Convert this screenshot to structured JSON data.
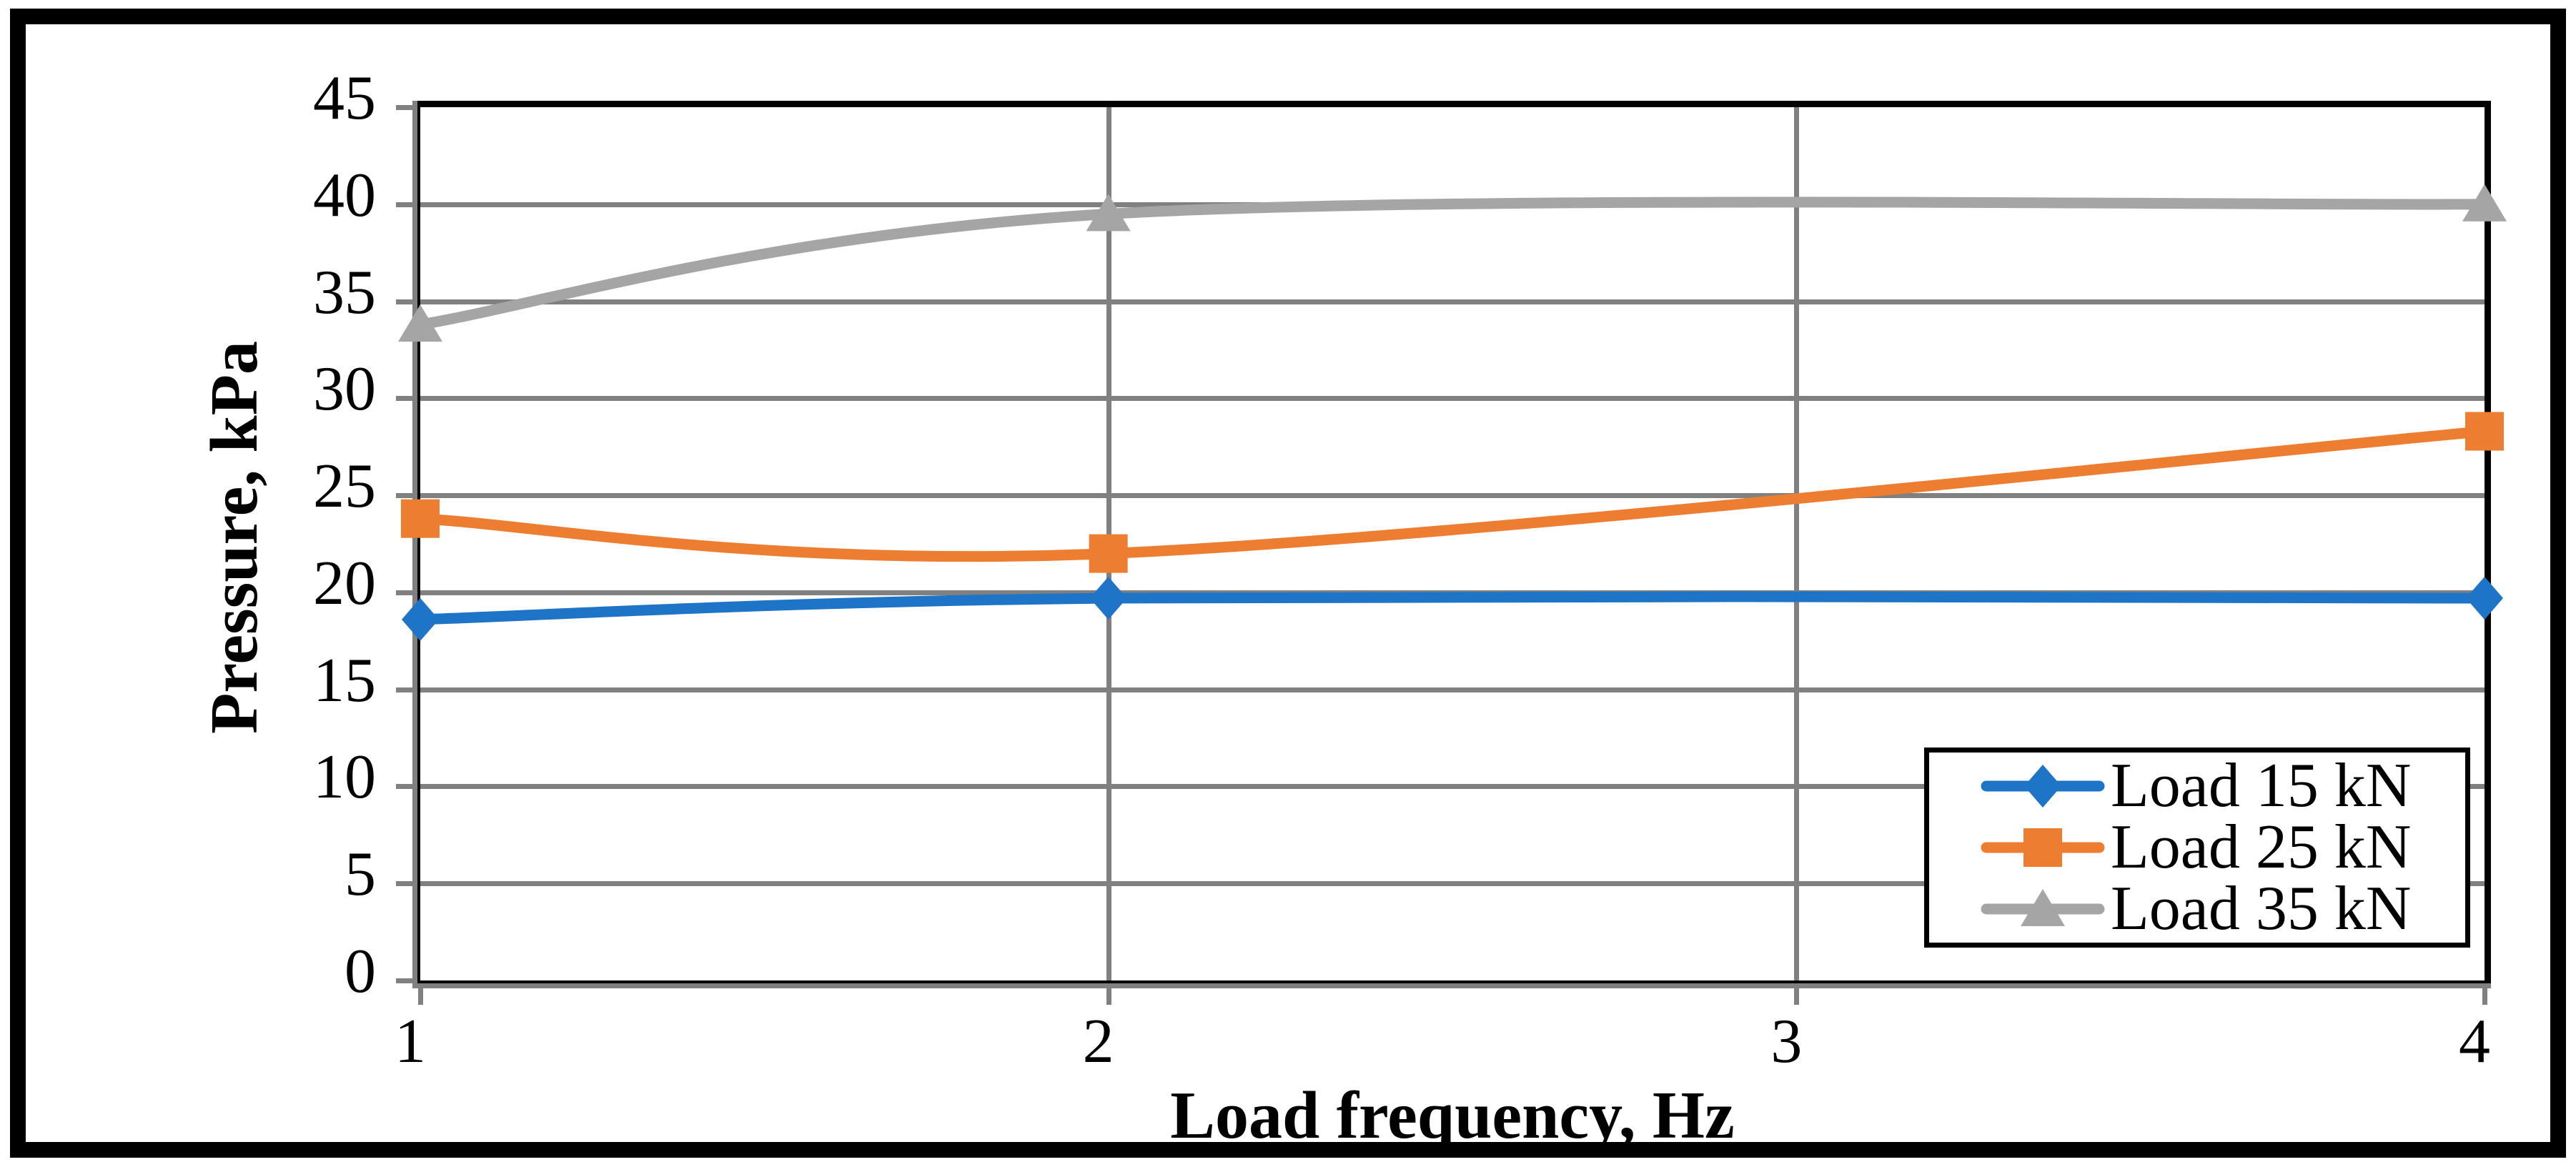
{
  "chart_data": {
    "type": "line",
    "title": "",
    "xlabel": "Load frequency, Hz",
    "ylabel": "Pressure, kPa",
    "x": [
      1,
      2,
      4
    ],
    "xlim": [
      1,
      4
    ],
    "ylim": [
      0,
      45
    ],
    "x_ticks": [
      "1",
      "2",
      "3",
      "4"
    ],
    "x_tick_values": [
      1,
      2,
      3,
      4
    ],
    "y_ticks": [
      "0",
      "5",
      "10",
      "15",
      "20",
      "25",
      "30",
      "35",
      "40",
      "45"
    ],
    "y_tick_values": [
      0,
      5,
      10,
      15,
      20,
      25,
      30,
      35,
      40,
      45
    ],
    "grid": true,
    "smooth": true,
    "legend_position": "inside-right",
    "series": [
      {
        "name": "Load 15 kN",
        "marker": "diamond",
        "color": "#1E74C6",
        "values": [
          18.6,
          19.7,
          19.7
        ]
      },
      {
        "name": "Load 25 kN",
        "marker": "square",
        "color": "#ED7D31",
        "values": [
          23.8,
          22.0,
          28.3
        ]
      },
      {
        "name": "Load 35 kN",
        "marker": "triangle",
        "color": "#A5A5A5",
        "values": [
          33.8,
          39.5,
          40.0
        ]
      }
    ],
    "colors": {
      "gridline": "#808080",
      "tick": "#808080",
      "axis_shadow": "#808080",
      "plot_border": "#000000",
      "figure_border": "#000000",
      "text": "#000000",
      "background": "#FFFFFF"
    }
  }
}
